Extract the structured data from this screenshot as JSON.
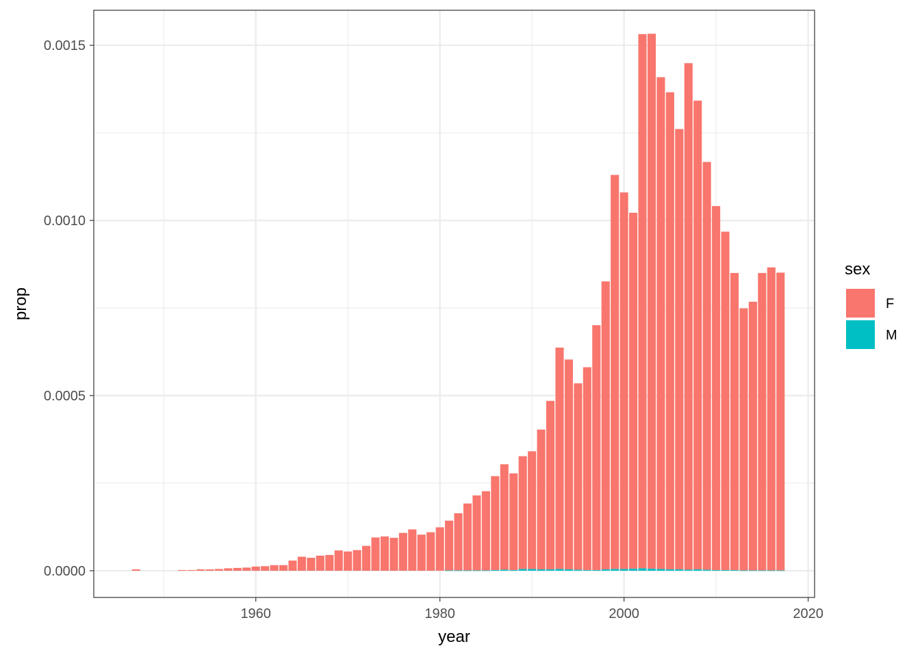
{
  "chart_data": {
    "type": "bar",
    "stacked": true,
    "xlabel": "year",
    "ylabel": "prop",
    "xlim": [
      1942.4,
      2020.7
    ],
    "ylim": [
      -7.63e-05,
      0.0016
    ],
    "x_ticks": [
      1960,
      1980,
      2000,
      2020
    ],
    "x_tick_labels": [
      "1960",
      "1980",
      "2000",
      "2020"
    ],
    "y_ticks": [
      0,
      0.0005,
      0.001,
      0.0015
    ],
    "y_tick_labels": [
      "0.0000",
      "0.0005",
      "0.0010",
      "0.0015"
    ],
    "grid": true,
    "legend": {
      "title": "sex",
      "position": "right",
      "entries": [
        "F",
        "M"
      ]
    },
    "colors": {
      "F": "#F8766D",
      "M": "#00BFC4"
    },
    "x": [
      1947,
      1952,
      1953,
      1954,
      1955,
      1956,
      1957,
      1958,
      1959,
      1960,
      1961,
      1962,
      1963,
      1964,
      1965,
      1966,
      1967,
      1968,
      1969,
      1970,
      1971,
      1972,
      1973,
      1974,
      1975,
      1976,
      1977,
      1978,
      1979,
      1980,
      1981,
      1982,
      1983,
      1984,
      1985,
      1986,
      1987,
      1988,
      1989,
      1990,
      1991,
      1992,
      1993,
      1994,
      1995,
      1996,
      1997,
      1998,
      1999,
      2000,
      2001,
      2002,
      2003,
      2004,
      2005,
      2006,
      2007,
      2008,
      2009,
      2010,
      2011,
      2012,
      2013,
      2014,
      2015,
      2016,
      2017
    ],
    "series": [
      {
        "name": "F",
        "values": [
          4e-06,
          2e-06,
          2e-06,
          4e-06,
          4e-06,
          5e-06,
          7e-06,
          8e-06,
          9e-06,
          1.2e-05,
          1.3e-05,
          1.6e-05,
          1.6e-05,
          2.9e-05,
          4e-05,
          3.7e-05,
          4.3e-05,
          4.5e-05,
          5.8e-05,
          5.5e-05,
          5.9e-05,
          7.1e-05,
          9.5e-05,
          9.8e-05,
          9.4e-05,
          0.000108,
          0.000118,
          0.000103,
          0.00011,
          0.000124,
          0.000142,
          0.000163,
          0.000191,
          0.000214,
          0.000226,
          0.000268,
          0.000301,
          0.000276,
          0.000322,
          0.000336,
          0.000399,
          0.000481,
          0.000632,
          0.000599,
          0.000532,
          0.000579,
          0.000699,
          0.000822,
          0.001125,
          0.001075,
          0.001016,
          0.001525,
          0.001527,
          0.001404,
          0.001362,
          0.001257,
          0.001446,
          0.001338,
          0.001164,
          0.001039,
          0.000966,
          0.000848,
          0.000748,
          0.000767,
          0.000849,
          0.000865,
          0.00085
        ],
        "raw_total_note": ""
      },
      {
        "name": "M",
        "values": [
          0,
          0,
          0,
          0,
          0,
          0,
          0,
          0,
          0,
          0,
          0,
          0,
          0,
          0,
          0,
          0,
          0,
          0,
          0,
          0,
          0,
          0,
          0,
          0,
          0,
          0,
          0,
          0,
          0,
          0,
          1e-06,
          1e-06,
          1e-06,
          1e-06,
          1e-06,
          2e-06,
          3e-06,
          2e-06,
          5e-06,
          5e-06,
          4e-06,
          4e-06,
          5e-06,
          4e-06,
          3e-06,
          2e-06,
          2e-06,
          4e-06,
          5e-06,
          5e-06,
          6e-06,
          7e-06,
          6e-06,
          5e-06,
          4e-06,
          4e-06,
          3e-06,
          4e-06,
          3e-06,
          2e-06,
          2e-06,
          2e-06,
          1e-06,
          1e-06,
          1e-06,
          1e-06,
          1e-06
        ]
      }
    ]
  }
}
